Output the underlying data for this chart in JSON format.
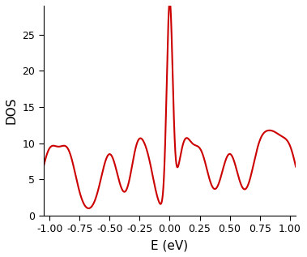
{
  "title": "",
  "xlabel": "E (eV)",
  "ylabel": "DOS",
  "xlim": [
    -1.05,
    1.05
  ],
  "ylim": [
    0,
    29
  ],
  "line_color": "#cc0000",
  "line_width": 1.5,
  "background_color": "#ffffff",
  "yticks": [
    0,
    5,
    10,
    15,
    20,
    25
  ],
  "xticks": [
    -1.0,
    -0.75,
    -0.5,
    -0.25,
    0.0,
    0.25,
    0.5,
    0.75,
    1.0
  ],
  "peak_positions": [
    -1.0,
    -0.85,
    -0.5,
    -0.27,
    -0.18,
    0.0,
    0.12,
    0.25,
    0.5,
    0.75,
    1.0,
    0.87
  ],
  "peak_heights": [
    8.2,
    8.2,
    8.2,
    8.2,
    6.0,
    28.5,
    8.5,
    8.5,
    8.2,
    8.2,
    8.0,
    8.0
  ],
  "peak_widths": [
    0.07,
    0.07,
    0.07,
    0.055,
    0.055,
    0.025,
    0.055,
    0.07,
    0.07,
    0.07,
    0.07,
    0.07
  ],
  "baseline": 0.3
}
